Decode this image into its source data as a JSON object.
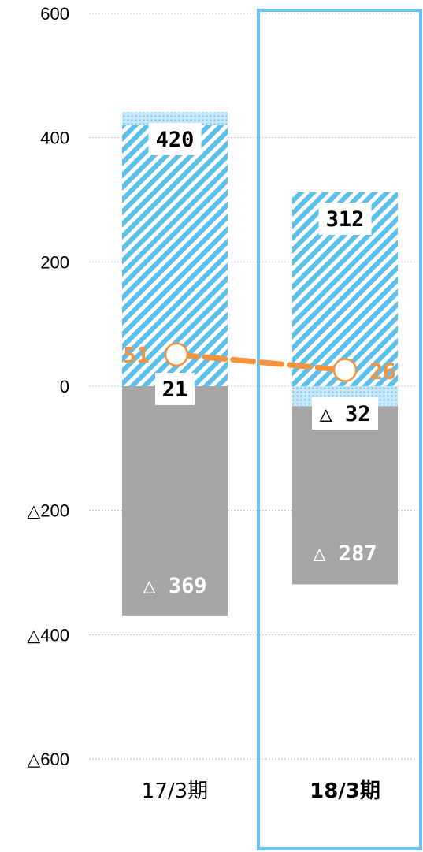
{
  "chart_data": {
    "type": "bar",
    "categories": [
      "17/3期",
      "18/3期"
    ],
    "highlight_category": "18/3期",
    "ylim": [
      -600,
      600
    ],
    "yticks": [
      600,
      400,
      200,
      0,
      -200,
      -400,
      -600
    ],
    "ytick_labels": [
      "600",
      "400",
      "200",
      "0",
      "△200",
      "△400",
      "△600"
    ],
    "grid": true,
    "series": [
      {
        "values": [
          420,
          312
        ],
        "labels": [
          "420",
          "312"
        ],
        "pattern": "diagonal-stripes",
        "color": "#5BC0EB"
      },
      {
        "values": [
          21,
          -32
        ],
        "labels": [
          "21",
          "△ 32"
        ],
        "pattern": "dots",
        "color": "#9FD6F2"
      },
      {
        "values": [
          -369,
          -287
        ],
        "labels": [
          "△ 369",
          "△ 287"
        ],
        "pattern": "solid",
        "color": "#A6A6A6"
      }
    ],
    "line": {
      "values": [
        51,
        26
      ],
      "labels": [
        "51",
        "26"
      ],
      "color": "#F5923E",
      "style": "dashed",
      "marker": "hollow-circle"
    }
  }
}
